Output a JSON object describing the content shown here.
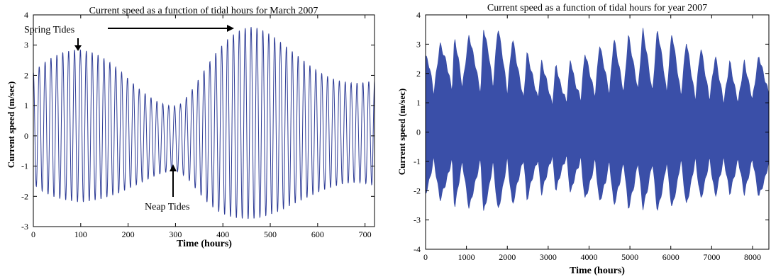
{
  "chart_data": [
    {
      "type": "line",
      "title": "Current speed as a function of tidal hours for March 2007",
      "xlabel": "Time (hours)",
      "ylabel": "Current speed (m/sec)",
      "xlim": [
        0,
        720
      ],
      "ylim": [
        -3,
        4
      ],
      "xticks": [
        0,
        100,
        200,
        300,
        400,
        500,
        600,
        700
      ],
      "yticks": [
        -3,
        -2,
        -1,
        0,
        1,
        2,
        3,
        4
      ],
      "grid": false,
      "line_color": "#2e3c96",
      "oscillation_period_hours": 12.42,
      "series": [
        {
          "x": [
            0,
            20,
            40,
            60,
            80,
            90,
            100,
            120,
            140,
            160,
            180,
            200,
            220,
            240,
            260,
            280,
            295,
            310,
            330,
            350,
            370,
            390,
            410,
            430,
            450,
            460,
            470,
            490,
            510,
            530,
            550,
            570,
            590,
            610,
            630,
            650,
            670,
            690,
            710,
            720
          ],
          "upper": [
            2.1,
            2.4,
            2.6,
            2.75,
            2.83,
            2.85,
            2.84,
            2.78,
            2.65,
            2.45,
            2.2,
            1.9,
            1.6,
            1.35,
            1.15,
            1.02,
            0.98,
            1.05,
            1.4,
            1.9,
            2.4,
            2.85,
            3.2,
            3.45,
            3.58,
            3.6,
            3.58,
            3.45,
            3.25,
            3.0,
            2.75,
            2.5,
            2.25,
            2.05,
            1.9,
            1.8,
            1.75,
            1.75,
            1.8,
            1.85
          ],
          "lower": [
            -1.6,
            -1.85,
            -2.0,
            -2.1,
            -2.15,
            -2.18,
            -2.2,
            -2.15,
            -2.1,
            -2.0,
            -1.9,
            -1.75,
            -1.6,
            -1.45,
            -1.3,
            -1.2,
            -1.15,
            -1.2,
            -1.5,
            -1.9,
            -2.25,
            -2.5,
            -2.65,
            -2.72,
            -2.75,
            -2.75,
            -2.73,
            -2.65,
            -2.55,
            -2.4,
            -2.25,
            -2.1,
            -1.95,
            -1.8,
            -1.7,
            -1.6,
            -1.55,
            -1.55,
            -1.6,
            -1.65
          ]
        }
      ],
      "annotations": [
        {
          "text": "Spring Tides",
          "points_to_hours": [
            95,
            435
          ]
        },
        {
          "text": "Neap Tides",
          "points_to_hours": [
            300
          ]
        }
      ]
    },
    {
      "type": "line",
      "title": "Current speed as a function of tidal hours for year 2007",
      "xlabel": "Time (hours)",
      "ylabel": "Current speed (m/sec)",
      "xlim": [
        0,
        8400
      ],
      "ylim": [
        -4,
        4
      ],
      "xticks": [
        0,
        1000,
        2000,
        3000,
        4000,
        5000,
        6000,
        7000,
        8000
      ],
      "yticks": [
        -4,
        -3,
        -2,
        -1,
        0,
        1,
        2,
        3,
        4
      ],
      "grid": false,
      "fill_color": "#3a4fa8",
      "series": [
        {
          "x": [
            0,
            100,
            200,
            354,
            500,
            650,
            709,
            800,
            900,
            1063,
            1200,
            1350,
            1418,
            1550,
            1650,
            1772,
            1900,
            2000,
            2127,
            2250,
            2400,
            2481,
            2600,
            2750,
            2836,
            2950,
            3100,
            3190,
            3300,
            3450,
            3545,
            3650,
            3800,
            3900,
            4050,
            4150,
            4254,
            4400,
            4500,
            4608,
            4750,
            4850,
            4963,
            5100,
            5200,
            5317,
            5450,
            5550,
            5672,
            5800,
            5900,
            6026,
            6150,
            6250,
            6381,
            6500,
            6600,
            6735,
            6850,
            6950,
            7090,
            7200,
            7300,
            7444,
            7550,
            7650,
            7799,
            7900,
            8000,
            8153,
            8300,
            8400
          ],
          "upper": [
            2.6,
            2.2,
            1.3,
            3.0,
            2.4,
            1.4,
            3.2,
            2.5,
            1.5,
            3.3,
            2.4,
            1.3,
            3.55,
            2.6,
            1.5,
            3.6,
            2.4,
            1.3,
            3.2,
            2.2,
            1.1,
            2.7,
            2.0,
            1.1,
            2.4,
            1.8,
            0.9,
            2.3,
            1.6,
            1.0,
            2.5,
            1.7,
            1.1,
            2.7,
            1.8,
            1.2,
            3.0,
            2.0,
            1.3,
            3.2,
            2.1,
            1.3,
            3.3,
            2.2,
            1.4,
            3.5,
            2.3,
            1.3,
            3.5,
            2.4,
            1.3,
            3.4,
            2.2,
            1.2,
            3.1,
            2.0,
            1.1,
            2.9,
            1.9,
            1.1,
            2.6,
            1.7,
            1.0,
            2.4,
            1.6,
            1.0,
            2.4,
            1.7,
            1.1,
            2.6,
            1.8,
            1.3
          ],
          "lower": [
            -2.1,
            -1.6,
            -0.9,
            -2.3,
            -1.7,
            -0.9,
            -2.6,
            -1.8,
            -1.0,
            -2.6,
            -1.8,
            -0.9,
            -2.75,
            -1.9,
            -1.0,
            -2.7,
            -1.8,
            -0.9,
            -2.5,
            -1.7,
            -0.9,
            -2.3,
            -1.6,
            -0.9,
            -2.1,
            -1.5,
            -0.8,
            -2.0,
            -1.4,
            -0.8,
            -2.1,
            -1.5,
            -0.9,
            -2.3,
            -1.6,
            -0.9,
            -2.4,
            -1.7,
            -1.0,
            -2.5,
            -1.7,
            -1.0,
            -2.6,
            -1.8,
            -1.0,
            -2.6,
            -1.8,
            -1.0,
            -2.7,
            -1.9,
            -1.0,
            -2.6,
            -1.8,
            -0.9,
            -2.5,
            -1.7,
            -0.9,
            -2.3,
            -1.6,
            -0.9,
            -2.2,
            -1.5,
            -0.9,
            -2.1,
            -1.5,
            -0.9,
            -2.1,
            -1.5,
            -0.9,
            -2.2,
            -1.6,
            -1.0
          ]
        }
      ]
    }
  ]
}
